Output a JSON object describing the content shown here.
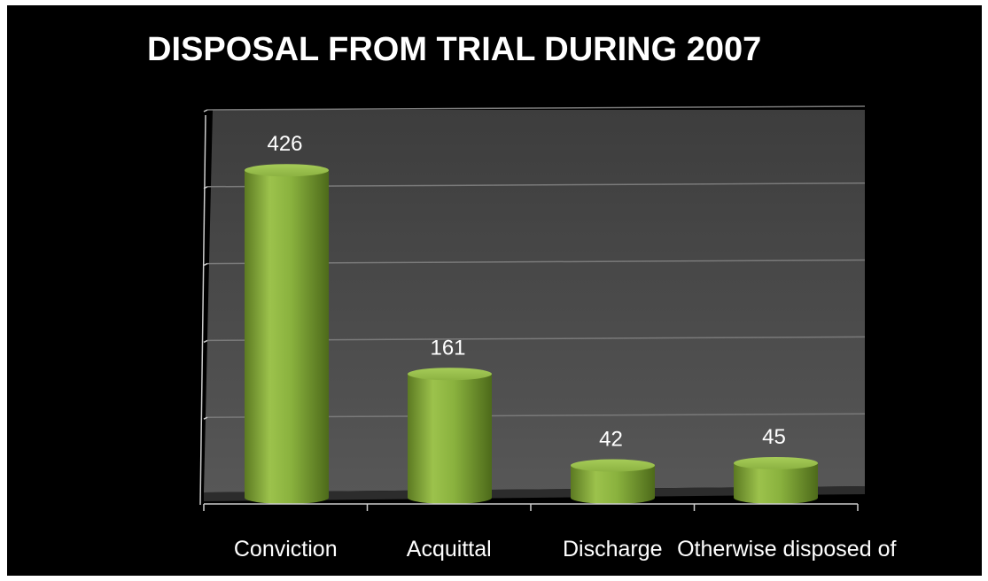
{
  "chart_data": {
    "type": "bar",
    "title": "DISPOSAL FROM TRIAL DURING 2007",
    "categories": [
      "Conviction",
      "Acquittal",
      "Discharge",
      "Otherwise disposed of"
    ],
    "values": [
      426,
      161,
      42,
      45
    ],
    "ylim": [
      0,
      500
    ],
    "grid": true,
    "bar_style": "3d-cylinder",
    "colors": {
      "background": "#000000",
      "plot_wall": "#4a4a4a",
      "bar": "#8bb040",
      "text": "#ffffff"
    }
  }
}
